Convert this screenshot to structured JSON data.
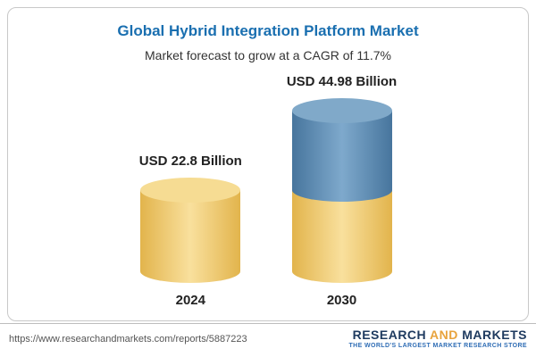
{
  "chart_data": {
    "type": "bar",
    "title": "Global Hybrid Integration Platform Market",
    "subtitle": "Market forecast to grow at a CAGR of 11.7%",
    "categories": [
      "2024",
      "2030"
    ],
    "values": [
      22.8,
      44.98
    ],
    "value_labels": [
      "USD 22.8 Billion",
      "USD 44.98 Billion"
    ],
    "unit": "USD Billion",
    "ylim": [
      0,
      50
    ],
    "legend": "none",
    "grid": "off",
    "colors": {
      "base_segment": "#F2CC6F",
      "growth_segment": "#5C8DB4",
      "title": "#1A6FB0"
    }
  },
  "footer": {
    "url": "https://www.researchandmarkets.com/reports/5887223",
    "logo": {
      "word1": "RESEARCH",
      "word2": "AND",
      "word3": "MARKETS",
      "tagline": "THE WORLD'S LARGEST MARKET RESEARCH STORE"
    }
  }
}
